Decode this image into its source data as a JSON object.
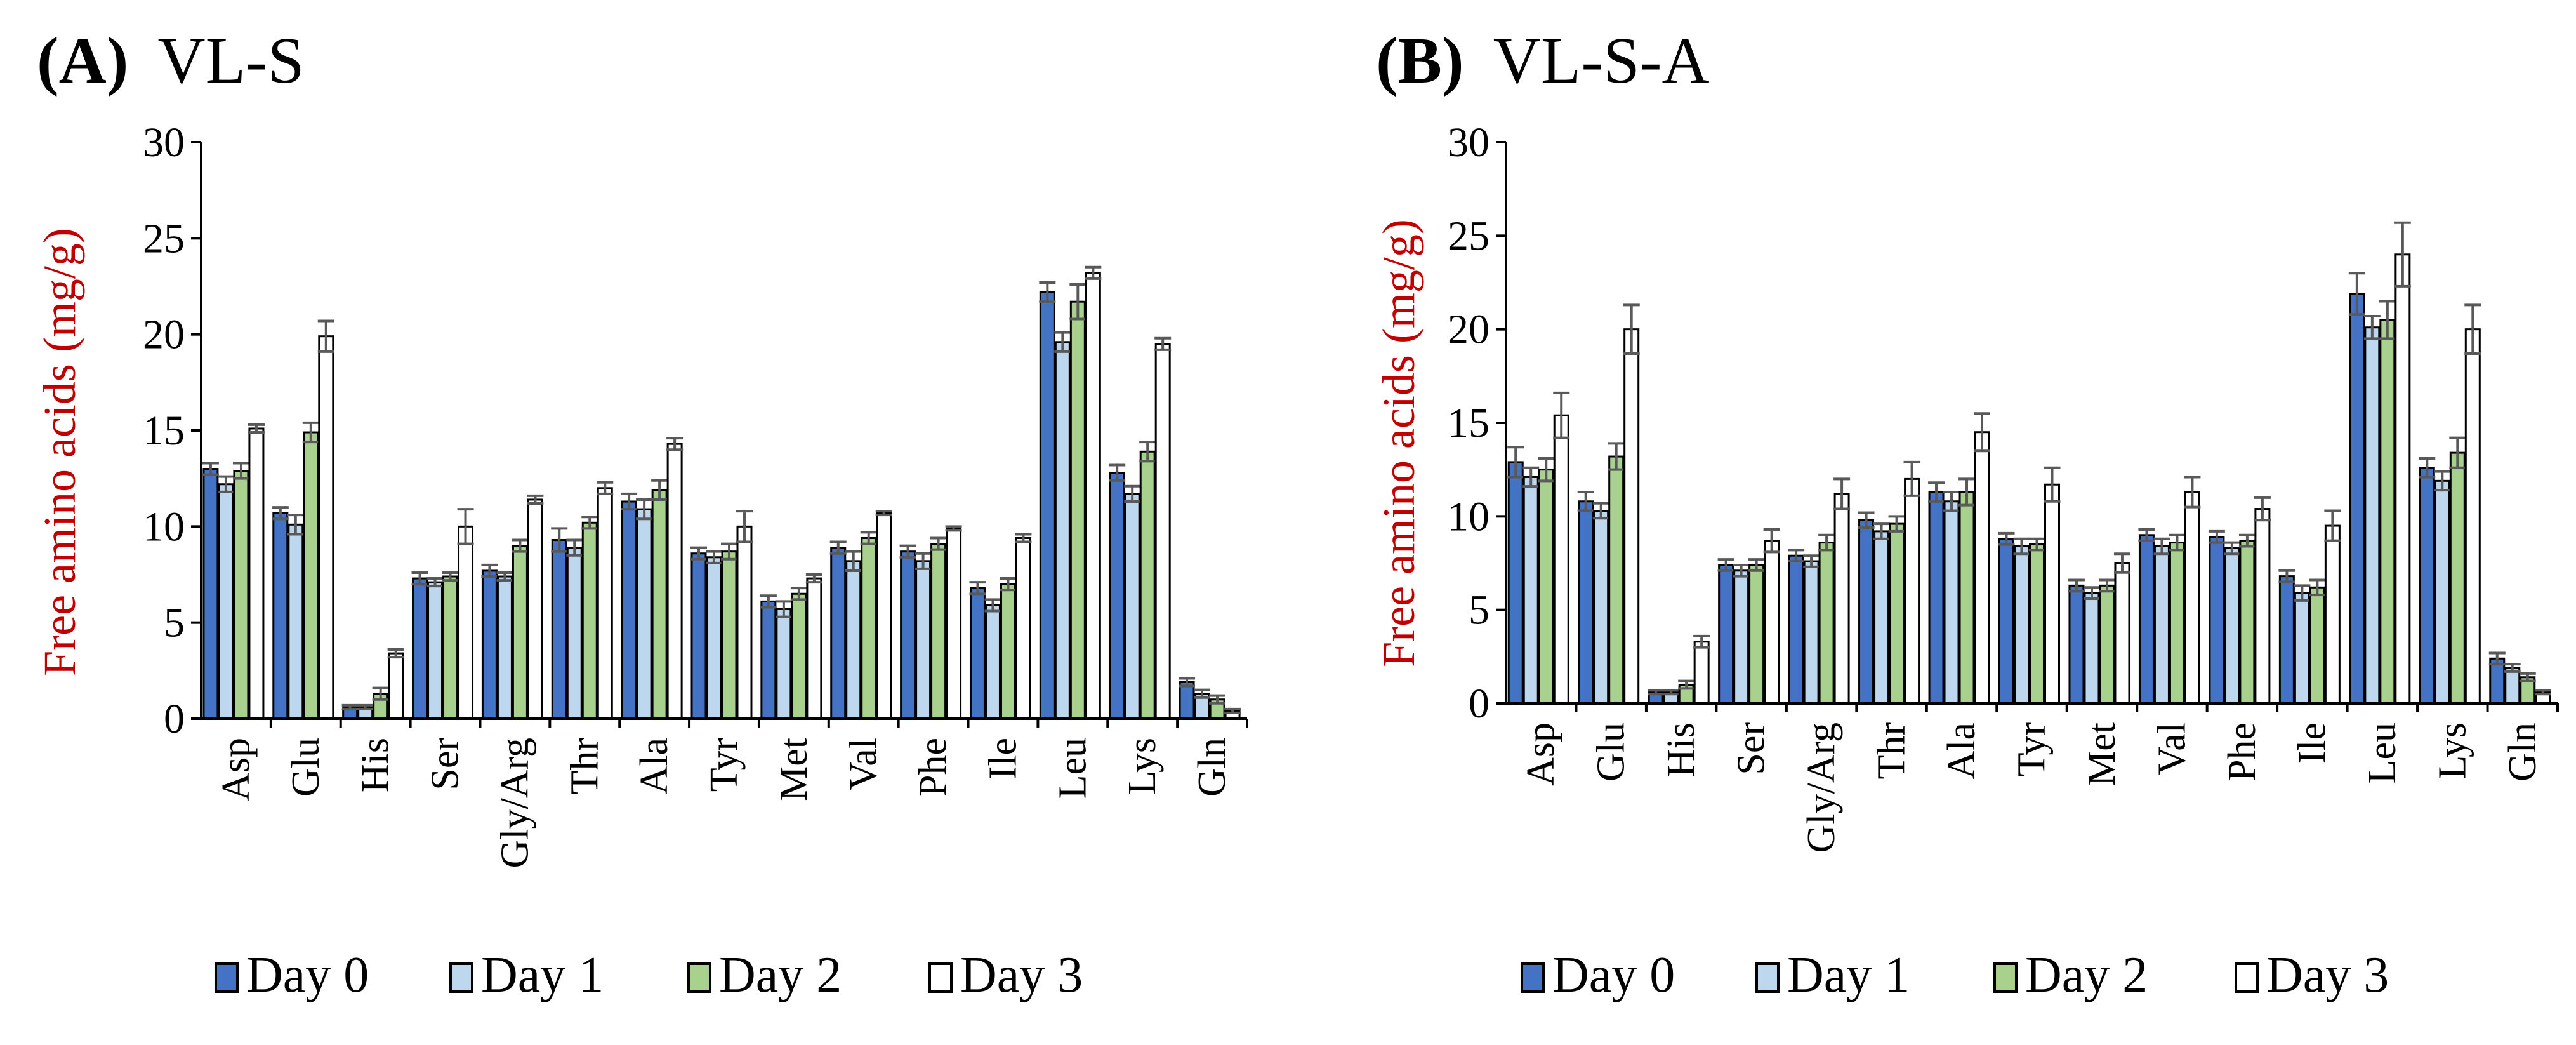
{
  "legend": [
    {
      "label": "Day 0",
      "color": "#4472c4",
      "stroke": "#000000"
    },
    {
      "label": "Day 1",
      "color": "#bdd7ee",
      "stroke": "#000000"
    },
    {
      "label": "Day 2",
      "color": "#a9d18e",
      "stroke": "#000000"
    },
    {
      "label": "Day 3",
      "color": "#ffffff",
      "stroke": "#000000"
    }
  ],
  "chart_data": [
    {
      "type": "bar",
      "panel": "(A)",
      "title": "VL-S",
      "xlabel": "",
      "ylabel": "Free amino acids (mg/g)",
      "ylim": [
        0,
        30
      ],
      "yticks": [
        0,
        5,
        10,
        15,
        20,
        25,
        30
      ],
      "categories": [
        "Asp",
        "Glu",
        "His",
        "Ser",
        "Gly/Arg",
        "Thr",
        "Ala",
        "Tyr",
        "Met",
        "Val",
        "Phe",
        "Ile",
        "Leu",
        "Lys",
        "Gln"
      ],
      "series": [
        {
          "name": "Day 0",
          "values": [
            13.0,
            10.7,
            0.6,
            7.3,
            7.7,
            9.3,
            11.3,
            8.6,
            6.1,
            8.9,
            8.7,
            6.8,
            22.2,
            12.8,
            1.9
          ],
          "errors": [
            0.3,
            0.3,
            0.1,
            0.3,
            0.3,
            0.6,
            0.4,
            0.3,
            0.3,
            0.3,
            0.3,
            0.3,
            0.5,
            0.4,
            0.2
          ]
        },
        {
          "name": "Day 1",
          "values": [
            12.2,
            10.1,
            0.6,
            7.1,
            7.4,
            8.9,
            10.9,
            8.4,
            5.7,
            8.2,
            8.2,
            5.9,
            19.6,
            11.7,
            1.3
          ],
          "errors": [
            0.4,
            0.5,
            0.1,
            0.2,
            0.2,
            0.4,
            0.5,
            0.3,
            0.4,
            0.5,
            0.4,
            0.3,
            0.5,
            0.4,
            0.2
          ]
        },
        {
          "name": "Day 2",
          "values": [
            12.9,
            14.9,
            1.3,
            7.4,
            9.0,
            10.2,
            11.9,
            8.7,
            6.5,
            9.4,
            9.1,
            7.0,
            21.7,
            13.9,
            1.0
          ],
          "errors": [
            0.4,
            0.5,
            0.3,
            0.2,
            0.3,
            0.3,
            0.5,
            0.4,
            0.3,
            0.3,
            0.3,
            0.3,
            0.9,
            0.5,
            0.2
          ]
        },
        {
          "name": "Day 3",
          "values": [
            15.1,
            19.9,
            3.4,
            10.0,
            11.4,
            12.0,
            14.3,
            10.0,
            7.3,
            10.7,
            9.9,
            9.4,
            23.2,
            19.5,
            0.4
          ],
          "errors": [
            0.2,
            0.8,
            0.2,
            0.9,
            0.2,
            0.3,
            0.3,
            0.8,
            0.2,
            0.1,
            0.1,
            0.2,
            0.3,
            0.3,
            0.1
          ]
        }
      ]
    },
    {
      "type": "bar",
      "panel": "(B)",
      "title": "VL-S-A",
      "xlabel": "",
      "ylabel": "Free amino acids (mg/g)",
      "ylim": [
        0,
        30
      ],
      "yticks": [
        0,
        5,
        10,
        15,
        20,
        25,
        30
      ],
      "categories": [
        "Asp",
        "Glu",
        "His",
        "Ser",
        "Gly/Arg",
        "Thr",
        "Ala",
        "Tyr",
        "Met",
        "Val",
        "Phe",
        "Ile",
        "Leu",
        "Lys",
        "Gln"
      ],
      "series": [
        {
          "name": "Day 0",
          "values": [
            12.9,
            10.8,
            0.6,
            7.4,
            7.9,
            9.8,
            11.3,
            8.8,
            6.3,
            9.0,
            8.9,
            6.8,
            21.9,
            12.6,
            2.4
          ],
          "errors": [
            0.8,
            0.5,
            0.1,
            0.3,
            0.3,
            0.4,
            0.5,
            0.3,
            0.3,
            0.3,
            0.3,
            0.3,
            1.1,
            0.5,
            0.3
          ]
        },
        {
          "name": "Day 1",
          "values": [
            12.1,
            10.3,
            0.6,
            7.1,
            7.6,
            9.2,
            10.8,
            8.4,
            5.9,
            8.4,
            8.3,
            5.9,
            20.1,
            11.9,
            1.9
          ],
          "errors": [
            0.5,
            0.4,
            0.1,
            0.3,
            0.3,
            0.4,
            0.5,
            0.4,
            0.3,
            0.4,
            0.3,
            0.4,
            0.6,
            0.5,
            0.2
          ]
        },
        {
          "name": "Day 2",
          "values": [
            12.5,
            13.2,
            1.0,
            7.4,
            8.6,
            9.6,
            11.3,
            8.5,
            6.3,
            8.6,
            8.7,
            6.2,
            20.5,
            13.4,
            1.4
          ],
          "errors": [
            0.6,
            0.7,
            0.2,
            0.3,
            0.4,
            0.4,
            0.7,
            0.3,
            0.3,
            0.4,
            0.3,
            0.4,
            1.0,
            0.8,
            0.2
          ]
        },
        {
          "name": "Day 3",
          "values": [
            15.4,
            20.0,
            3.3,
            8.7,
            11.2,
            12.0,
            14.5,
            11.7,
            7.5,
            11.3,
            10.4,
            9.5,
            24.0,
            20.0,
            0.6
          ],
          "errors": [
            1.2,
            1.3,
            0.3,
            0.6,
            0.8,
            0.9,
            1.0,
            0.9,
            0.5,
            0.8,
            0.6,
            0.8,
            1.7,
            1.3,
            0.1
          ]
        }
      ]
    }
  ]
}
